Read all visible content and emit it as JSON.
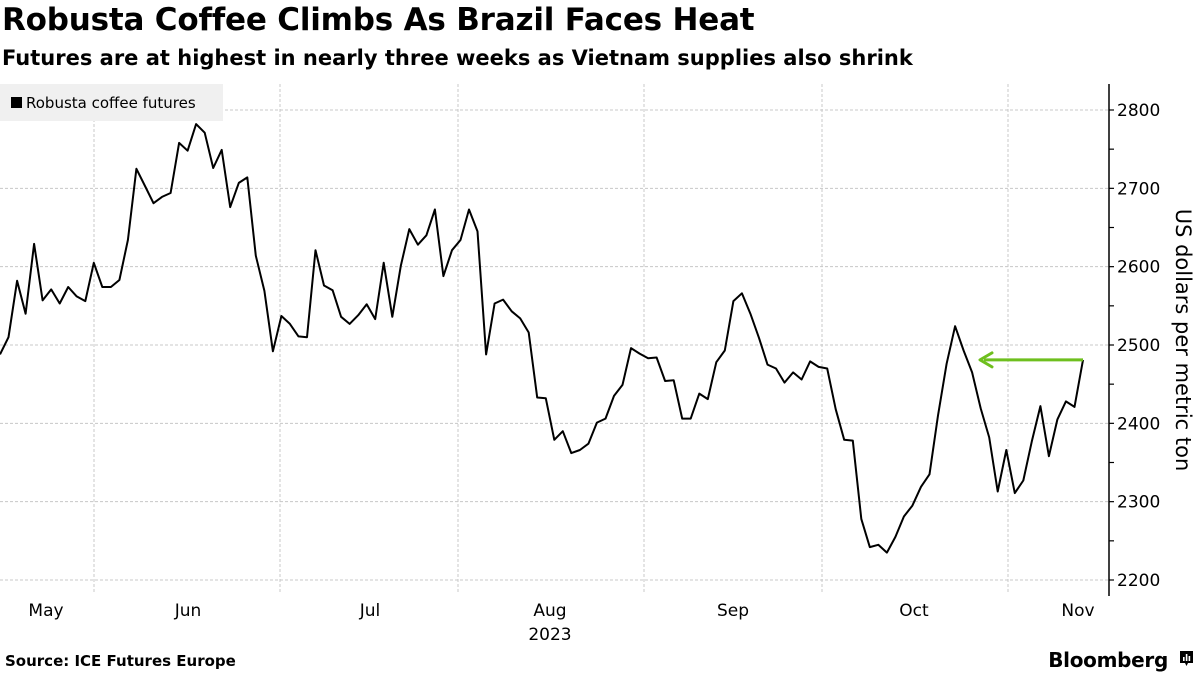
{
  "header": {
    "title": "Robusta Coffee Climbs As Brazil Faces Heat",
    "subtitle": "Futures are at highest in nearly three weeks as Vietnam supplies also shrink"
  },
  "footer": {
    "source": "Source: ICE Futures Europe",
    "brand": "Bloomberg",
    "brand_icon": "bloomberg-chart-icon"
  },
  "colors": {
    "line": "#000000",
    "annotation_arrow": "#6ebf1e",
    "grid": "#c8c8c8",
    "legend_bg": "#f0f0f0"
  },
  "chart_data": {
    "type": "line",
    "title": "Robusta Coffee Climbs As Brazil Faces Heat",
    "subtitle": "Futures are at highest in nearly three weeks as Vietnam supplies also shrink",
    "legend": {
      "entries": [
        "Robusta coffee futures"
      ],
      "placement": "top-left"
    },
    "xlabel": "",
    "ylabel": "US dollars per metric ton",
    "ylim": [
      2185,
      2840
    ],
    "yticks": [
      2200,
      2300,
      2400,
      2500,
      2600,
      2700,
      2800
    ],
    "ytick_labels": [
      "2200",
      "2300",
      "2400",
      "2500",
      "2600",
      "2700",
      "2800"
    ],
    "y_axis_side": "right",
    "x_tick_labels": [
      "May",
      "Jun",
      "Jul",
      "Aug",
      "Sep",
      "Oct",
      "Nov"
    ],
    "x_year_label": "2023",
    "grid": true,
    "annotation": {
      "type": "arrow",
      "from_value": 2481,
      "to_value": 2481,
      "direction": "left"
    },
    "series": [
      {
        "name": "Robusta coffee futures",
        "values": [
          2488,
          2510,
          2582,
          2540,
          2629,
          2557,
          2571,
          2553,
          2574,
          2562,
          2556,
          2605,
          2574,
          2574,
          2583,
          2634,
          2725,
          2703,
          2681,
          2689,
          2694,
          2758,
          2748,
          2782,
          2771,
          2726,
          2749,
          2676,
          2707,
          2714,
          2614,
          2569,
          2492,
          2537,
          2527,
          2511,
          2510,
          2621,
          2576,
          2570,
          2536,
          2527,
          2538,
          2552,
          2533,
          2605,
          2536,
          2601,
          2648,
          2628,
          2640,
          2673,
          2588,
          2621,
          2634,
          2673,
          2645,
          2488,
          2553,
          2558,
          2543,
          2534,
          2516,
          2433,
          2432,
          2379,
          2390,
          2362,
          2366,
          2374,
          2401,
          2406,
          2435,
          2449,
          2496,
          2489,
          2483,
          2484,
          2454,
          2455,
          2406,
          2406,
          2438,
          2431,
          2478,
          2493,
          2556,
          2566,
          2540,
          2509,
          2475,
          2470,
          2452,
          2465,
          2456,
          2479,
          2472,
          2470,
          2418,
          2379,
          2378,
          2278,
          2242,
          2245,
          2235,
          2255,
          2281,
          2295,
          2319,
          2335,
          2410,
          2476,
          2524,
          2493,
          2465,
          2419,
          2382,
          2313,
          2366,
          2311,
          2327,
          2377,
          2422,
          2358,
          2405,
          2428,
          2421,
          2481
        ]
      }
    ]
  }
}
